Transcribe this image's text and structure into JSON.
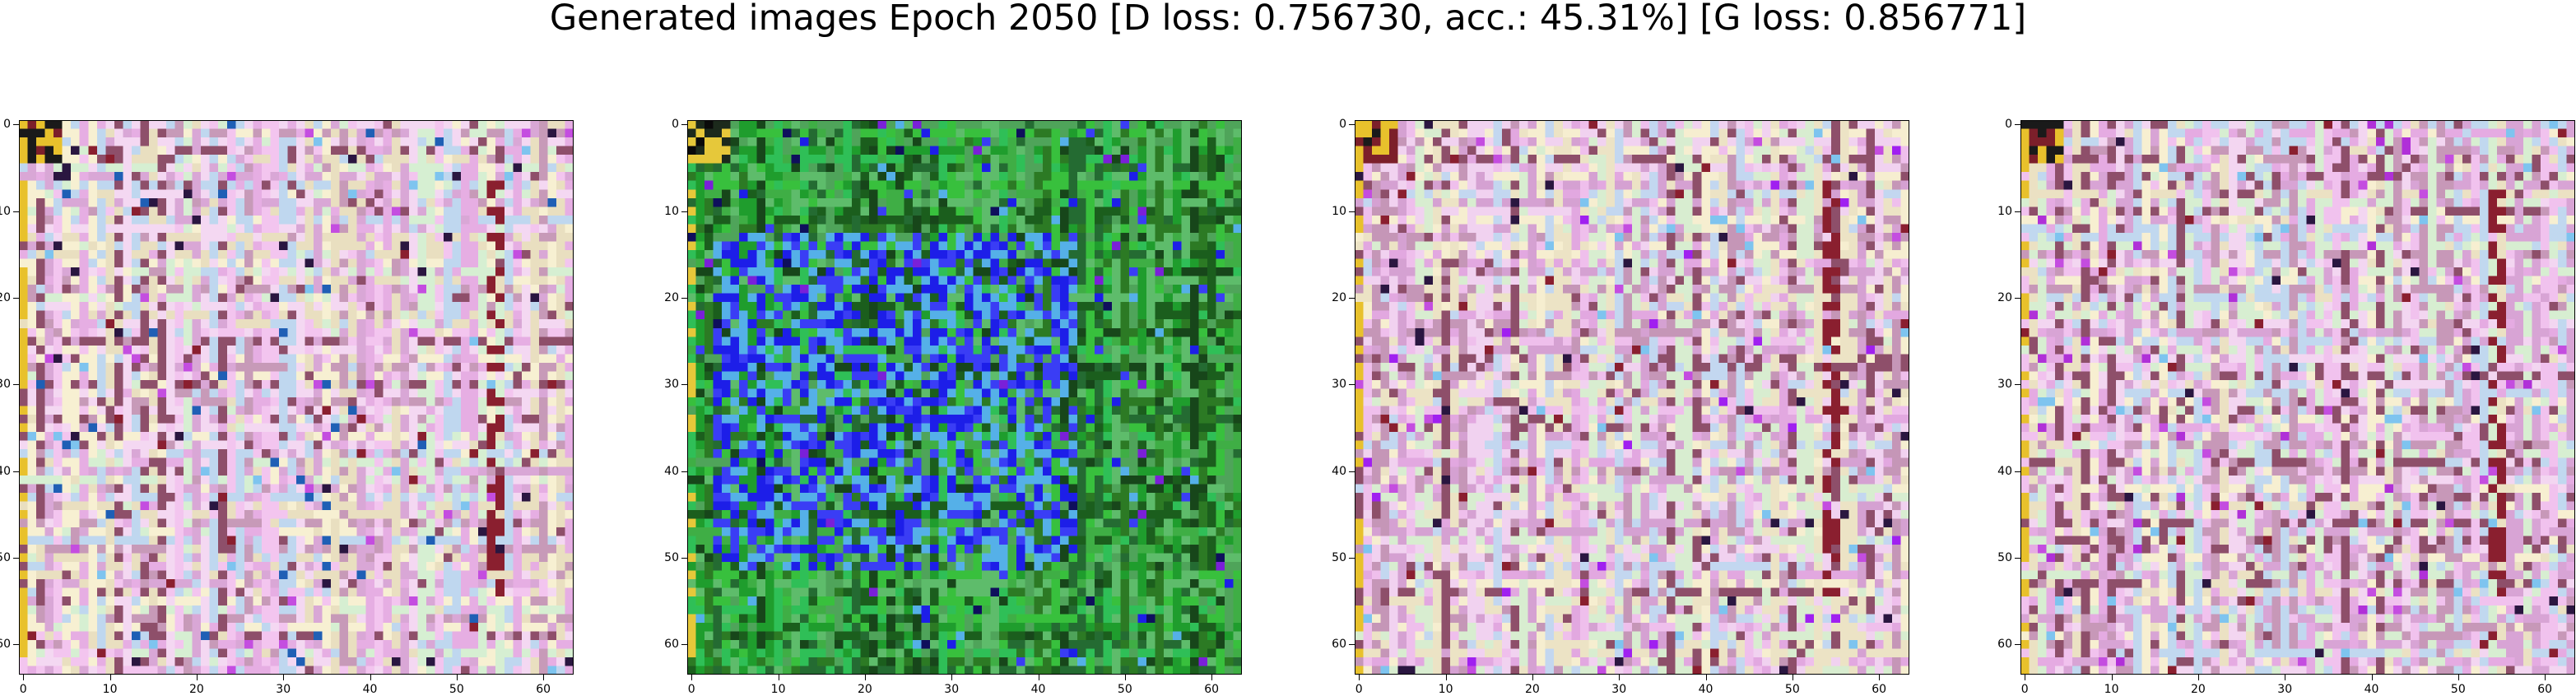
{
  "figure": {
    "title": "Generated images Epoch 2050 [D loss: 0.756730, acc.: 45.31%] [G loss: 0.856771]"
  },
  "axes": {
    "x_ticks": [
      "0",
      "10",
      "20",
      "30",
      "40",
      "50",
      "60"
    ],
    "y_ticks": [
      "0",
      "10",
      "20",
      "30",
      "40",
      "50",
      "60"
    ],
    "tick_values": [
      0,
      10,
      20,
      30,
      40,
      50,
      60
    ],
    "pixel_extent": 64
  },
  "images": [
    {
      "name": "generated-image-1",
      "palette": [
        "#f4d8f2",
        "#e6aee3",
        "#f7f0d2",
        "#d9a7d6",
        "#bfd7ef",
        "#c79ab8",
        "#e9dfc0",
        "#8e4f6a",
        "#f3c5ef",
        "#d6efd2"
      ],
      "corner": [
        "#7c1f2a",
        "#e8c12c",
        "#1a1a1a"
      ],
      "accents": [
        "#c44de0",
        "#8a1f2f",
        "#7ec4ef",
        "#2a1640",
        "#1f5fb5"
      ]
    },
    {
      "name": "generated-image-2",
      "palette": [
        "#1f9d2d",
        "#2c7a24",
        "#3fae45",
        "#1b5e1d",
        "#38c03d",
        "#4fa45a",
        "#17461a",
        "#2fbf57",
        "#5ebc6b",
        "#246b32"
      ],
      "corner": [
        "#1c2a1c",
        "#e6c83a",
        "#0a0a0a"
      ],
      "accents": [
        "#1d1ee8",
        "#3a3df5",
        "#55b0e8",
        "#7a20d8",
        "#0f0f5c"
      ]
    },
    {
      "name": "generated-image-3",
      "palette": [
        "#f1d2f0",
        "#e2a8e0",
        "#f6eed0",
        "#d5a1d2",
        "#c3d7f0",
        "#c596b7",
        "#ece3c5",
        "#8e4f6a",
        "#efbfec",
        "#d8edd0"
      ],
      "corner": [
        "#7c1f2a",
        "#e8c12c",
        "#1a1a1a"
      ],
      "accents": [
        "#c44de0",
        "#8a1f2f",
        "#7ec4ef",
        "#2a1640",
        "#a020f0"
      ]
    },
    {
      "name": "generated-image-4",
      "palette": [
        "#f3d6f1",
        "#e5abe2",
        "#f7efd1",
        "#d8a4d5",
        "#c1d8ef",
        "#c798b8",
        "#ebe1c3",
        "#8e4f6a",
        "#f1c2ee",
        "#d7eed1"
      ],
      "corner": [
        "#7c1f2a",
        "#e8c12c",
        "#1a1a1a"
      ],
      "accents": [
        "#c44de0",
        "#8a1f2f",
        "#7ec4ef",
        "#2a1640",
        "#b030d8"
      ]
    }
  ]
}
